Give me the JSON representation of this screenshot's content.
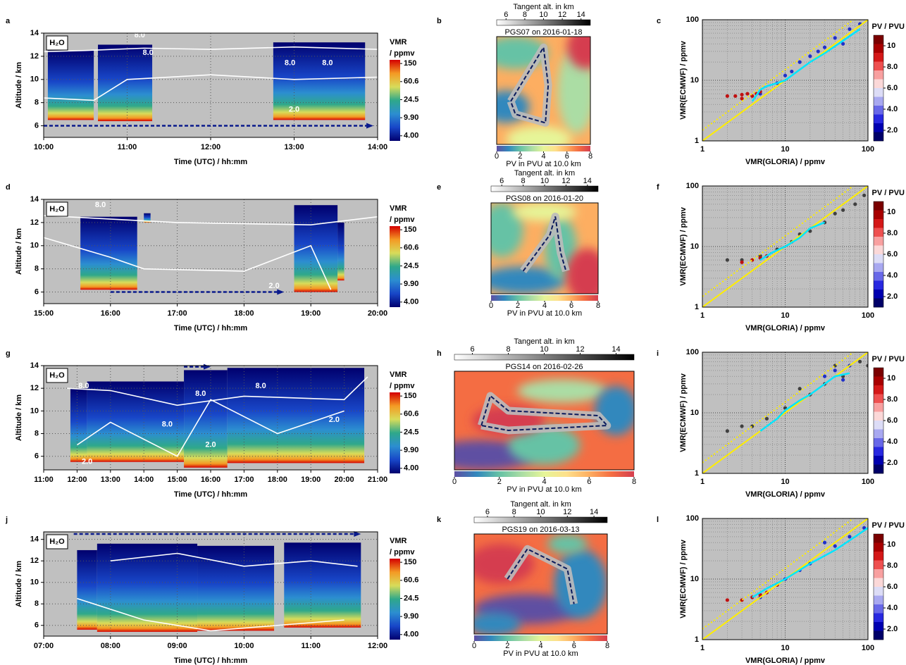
{
  "chart_data": [
    {
      "type": "curtain",
      "panel_label": "a",
      "species": "H₂O",
      "xlabel": "Time (UTC) / hh:mm",
      "ylabel": "Altitude / km",
      "xlim": [
        10,
        14
      ],
      "xticks": [
        {
          "value": 10,
          "label": "10:00"
        },
        {
          "value": 11,
          "label": "11:00"
        },
        {
          "value": 12,
          "label": "12:00"
        },
        {
          "value": 13,
          "label": "13:00"
        },
        {
          "value": 14,
          "label": "14:00"
        }
      ],
      "ylim": [
        5,
        14
      ],
      "yticks": [
        6,
        8,
        10,
        12,
        14
      ],
      "grid": true,
      "colorbar_title": [
        "VMR",
        "/ ppmv"
      ],
      "clim": [
        3.1,
        180
      ],
      "log_colorbar": true,
      "colorbar_ticks": [
        150,
        60.6,
        24.5,
        {
          "value": 9.9,
          "label": "9.90"
        },
        {
          "value": 4,
          "label": "4.00"
        }
      ],
      "colormap": [
        "#00006e",
        "#1846c8",
        "#2c8ed0",
        "#2fa88a",
        "#d8dc5a",
        "#f49a24",
        "#d40000"
      ],
      "contour_labels": [
        "8.0",
        "8.0",
        "8.0",
        "8.0",
        "2.0"
      ]
    },
    {
      "type": "map",
      "panel_label": "b",
      "title": "PGS07 on 2016-01-18",
      "tangent_title": "Tangent alt. in km",
      "tangent_lim": [
        5,
        15
      ],
      "tangent_ticks": [
        6,
        8,
        10,
        12,
        14
      ],
      "pv_label": "PV in PVU at 10.0 km",
      "pv_lim": [
        0,
        8
      ],
      "pv_ticks": [
        0,
        2,
        4,
        6,
        8
      ],
      "pv_colormap": [
        "#5e4fa2",
        "#3288bd",
        "#66c2a5",
        "#abdda4",
        "#e6f598",
        "#fee08b",
        "#fdae61",
        "#f46d43",
        "#d53e4f",
        "#9e0142"
      ]
    },
    {
      "type": "scatter",
      "panel_label": "c",
      "xlabel": "VMR(GLORIA) / ppmv",
      "ylabel": "VMR(ECMWF) / ppmv",
      "log": true,
      "xlim": [
        1,
        100
      ],
      "ylim": [
        1,
        100
      ],
      "xticks": [
        1,
        10,
        100
      ],
      "yticks": [
        1,
        10,
        100
      ],
      "colorbar_title": "PV / PVU",
      "clim": [
        1,
        11
      ],
      "colorbar_ticks": [
        {
          "value": 2,
          "label": "2.0"
        },
        {
          "value": 4,
          "label": "4.0"
        },
        {
          "value": 6,
          "label": "6.0"
        },
        {
          "value": 8,
          "label": "8.0"
        },
        10
      ],
      "colorbar_colors": [
        "#7a0000",
        "#a80000",
        "#d41818",
        "#ee5050",
        "#f8a0a0",
        "#fbd8d8",
        "#dcdcf6",
        "#a8a8f0",
        "#6868e8",
        "#2828e0",
        "#0000b0",
        "#000068"
      ],
      "series": [
        {
          "color": "#2030c8",
          "x": [
            5,
            8,
            12,
            15,
            20,
            30,
            40,
            60,
            80,
            25,
            10,
            50
          ],
          "y": [
            6,
            9,
            14,
            20,
            25,
            35,
            50,
            70,
            85,
            30,
            12,
            40
          ]
        },
        {
          "color": "#c01010",
          "x": [
            2,
            2.5,
            3,
            3.5,
            4,
            4.5,
            5,
            3
          ],
          "y": [
            5.5,
            5.5,
            5.8,
            6,
            5.5,
            6,
            6.5,
            5
          ]
        }
      ],
      "median": {
        "color": "#00e5ff",
        "x": [
          4,
          5,
          6,
          8,
          10,
          15,
          20,
          30,
          50,
          80
        ],
        "y": [
          4.5,
          7,
          8,
          9,
          10,
          15,
          20,
          28,
          45,
          70
        ]
      }
    },
    {
      "type": "curtain",
      "panel_label": "d",
      "species": "H₂O",
      "xlabel": "Time (UTC) / hh:mm",
      "ylabel": "Altitude / km",
      "xlim": [
        15,
        20
      ],
      "xticks": [
        {
          "value": 15,
          "label": "15:00"
        },
        {
          "value": 16,
          "label": "16:00"
        },
        {
          "value": 17,
          "label": "17:00"
        },
        {
          "value": 18,
          "label": "18:00"
        },
        {
          "value": 19,
          "label": "19:00"
        },
        {
          "value": 20,
          "label": "20:00"
        }
      ],
      "ylim": [
        5,
        14
      ],
      "yticks": [
        6,
        8,
        10,
        12,
        14
      ],
      "grid": true,
      "colorbar_title": [
        "VMR",
        "/ ppmv"
      ],
      "clim": [
        3.1,
        180
      ],
      "log_colorbar": true,
      "colorbar_ticks": [
        150,
        60.6,
        24.5,
        {
          "value": 9.9,
          "label": "9.90"
        },
        {
          "value": 4,
          "label": "4.00"
        }
      ],
      "colormap": [
        "#00006e",
        "#1846c8",
        "#2c8ed0",
        "#2fa88a",
        "#d8dc5a",
        "#f49a24",
        "#d40000"
      ],
      "contour_labels": [
        "8.0",
        "2.0"
      ]
    },
    {
      "type": "map",
      "panel_label": "e",
      "title": "PGS08 on 2016-01-20",
      "tangent_title": "Tangent alt. in km",
      "tangent_lim": [
        5,
        15
      ],
      "tangent_ticks": [
        6,
        8,
        10,
        12,
        14
      ],
      "pv_label": "PV in PVU at 10.0 km",
      "pv_lim": [
        0,
        8
      ],
      "pv_ticks": [
        0,
        2,
        4,
        6,
        8
      ],
      "pv_colormap": [
        "#5e4fa2",
        "#3288bd",
        "#66c2a5",
        "#abdda4",
        "#e6f598",
        "#fee08b",
        "#fdae61",
        "#f46d43",
        "#d53e4f",
        "#9e0142"
      ]
    },
    {
      "type": "scatter",
      "panel_label": "f",
      "xlabel": "VMR(GLORIA) / ppmv",
      "ylabel": "VMR(ECMWF) / ppmv",
      "log": true,
      "xlim": [
        1,
        100
      ],
      "ylim": [
        1,
        100
      ],
      "xticks": [
        1,
        10,
        100
      ],
      "yticks": [
        1,
        10,
        100
      ],
      "colorbar_title": "PV / PVU",
      "clim": [
        1,
        11
      ],
      "colorbar_ticks": [
        {
          "value": 2,
          "label": "2.0"
        },
        {
          "value": 4,
          "label": "4.0"
        },
        {
          "value": 6,
          "label": "6.0"
        },
        {
          "value": 8,
          "label": "8.0"
        },
        10
      ],
      "colorbar_colors": [
        "#7a0000",
        "#a80000",
        "#d41818",
        "#ee5050",
        "#f8a0a0",
        "#fbd8d8",
        "#dcdcf6",
        "#a8a8f0",
        "#6868e8",
        "#2828e0",
        "#0000b0",
        "#000068"
      ],
      "series": [
        {
          "color": "#404040",
          "x": [
            2,
            3,
            5,
            8,
            12,
            20,
            30,
            50,
            70,
            90,
            15,
            40
          ],
          "y": [
            6,
            6,
            7,
            9,
            12,
            18,
            25,
            40,
            50,
            70,
            16,
            35
          ]
        },
        {
          "color": "#c01010",
          "x": [
            3,
            4,
            5,
            6
          ],
          "y": [
            5.5,
            6,
            6.5,
            7
          ]
        }
      ],
      "median": {
        "color": "#00e5ff",
        "x": [
          5,
          7,
          10,
          15,
          20,
          30
        ],
        "y": [
          6,
          8,
          10,
          14,
          20,
          25
        ]
      }
    },
    {
      "type": "curtain",
      "panel_label": "g",
      "species": "H₂O",
      "xlabel": "Time (UTC) / hh:mm",
      "ylabel": "Altitude / km",
      "xlim": [
        11,
        21
      ],
      "xticks": [
        {
          "value": 11,
          "label": "11:00"
        },
        {
          "value": 12,
          "label": "12:00"
        },
        {
          "value": 13,
          "label": "13:00"
        },
        {
          "value": 14,
          "label": "14:00"
        },
        {
          "value": 15,
          "label": "15:00"
        },
        {
          "value": 16,
          "label": "16:00"
        },
        {
          "value": 17,
          "label": "17:00"
        },
        {
          "value": 18,
          "label": "18:00"
        },
        {
          "value": 19,
          "label": "19:00"
        },
        {
          "value": 20,
          "label": "20:00"
        },
        {
          "value": 21,
          "label": "21:00"
        }
      ],
      "ylim": [
        4.8,
        14
      ],
      "yticks": [
        6,
        8,
        10,
        12,
        14
      ],
      "grid": true,
      "colorbar_title": [
        "VMR",
        "/ ppmv"
      ],
      "clim": [
        3.1,
        180
      ],
      "log_colorbar": true,
      "colorbar_ticks": [
        150,
        60.6,
        24.5,
        {
          "value": 9.9,
          "label": "9.90"
        },
        {
          "value": 4,
          "label": "4.00"
        }
      ],
      "colormap": [
        "#00006e",
        "#1846c8",
        "#2c8ed0",
        "#2fa88a",
        "#d8dc5a",
        "#f49a24",
        "#d40000"
      ],
      "contour_labels": [
        "8.0",
        "8.0",
        "8.0",
        "8.0",
        "2.0",
        "2.0",
        "2.0"
      ]
    },
    {
      "type": "map",
      "panel_label": "h",
      "title": "PGS14 on 2016-02-26",
      "tangent_title": "Tangent alt. in km",
      "tangent_lim": [
        5,
        15
      ],
      "tangent_ticks": [
        6,
        8,
        10,
        12,
        14
      ],
      "pv_label": "PV in PVU at 10.0 km",
      "pv_lim": [
        0,
        8
      ],
      "pv_ticks": [
        0,
        2,
        4,
        6,
        8
      ],
      "pv_colormap": [
        "#5e4fa2",
        "#3288bd",
        "#66c2a5",
        "#abdda4",
        "#e6f598",
        "#fee08b",
        "#fdae61",
        "#f46d43",
        "#d53e4f",
        "#9e0142"
      ]
    },
    {
      "type": "scatter",
      "panel_label": "i",
      "xlabel": "VMR(GLORIA) / ppmv",
      "ylabel": "VMR(ECMWF) / ppmv",
      "log": true,
      "xlim": [
        1,
        100
      ],
      "ylim": [
        1,
        100
      ],
      "xticks": [
        1,
        10,
        100
      ],
      "yticks": [
        1,
        10,
        100
      ],
      "colorbar_title": "PV / PVU",
      "clim": [
        1,
        11
      ],
      "colorbar_ticks": [
        {
          "value": 2,
          "label": "2.0"
        },
        {
          "value": 4,
          "label": "4.0"
        },
        {
          "value": 6,
          "label": "6.0"
        },
        {
          "value": 8,
          "label": "8.0"
        },
        10
      ],
      "colorbar_colors": [
        "#7a0000",
        "#a80000",
        "#d41818",
        "#ee5050",
        "#f8a0a0",
        "#fbd8d8",
        "#dcdcf6",
        "#a8a8f0",
        "#6868e8",
        "#2828e0",
        "#0000b0",
        "#000068"
      ],
      "series": [
        {
          "color": "#404040",
          "x": [
            2,
            3,
            4,
            6,
            10,
            20,
            30,
            50,
            80,
            100,
            40,
            15
          ],
          "y": [
            5,
            6,
            6,
            8,
            12,
            20,
            30,
            40,
            70,
            60,
            60,
            25
          ]
        },
        {
          "color": "#2030c8",
          "x": [
            30,
            40,
            50,
            60
          ],
          "y": [
            40,
            50,
            35,
            60
          ]
        }
      ],
      "median": {
        "color": "#00e5ff",
        "x": [
          5,
          8,
          10,
          15,
          20,
          30,
          40,
          60
        ],
        "y": [
          5,
          8,
          11,
          16,
          20,
          30,
          40,
          45
        ]
      }
    },
    {
      "type": "curtain",
      "panel_label": "j",
      "species": "H₂O",
      "xlabel": "Time (UTC) / hh:mm",
      "ylabel": "Altitude / km",
      "xlim": [
        7,
        12
      ],
      "xticks": [
        {
          "value": 7,
          "label": "07:00"
        },
        {
          "value": 8,
          "label": "08:00"
        },
        {
          "value": 9,
          "label": "09:00"
        },
        {
          "value": 10,
          "label": "10:00"
        },
        {
          "value": 11,
          "label": "11:00"
        },
        {
          "value": 12,
          "label": "12:00"
        }
      ],
      "ylim": [
        5,
        14.7
      ],
      "yticks": [
        6,
        8,
        10,
        12,
        14
      ],
      "grid": true,
      "colorbar_title": [
        "VMR",
        "/ ppmv"
      ],
      "clim": [
        3.1,
        180
      ],
      "log_colorbar": true,
      "colorbar_ticks": [
        150,
        60.6,
        24.5,
        {
          "value": 9.9,
          "label": "9.90"
        },
        {
          "value": 4,
          "label": "4.00"
        }
      ],
      "colormap": [
        "#00006e",
        "#1846c8",
        "#2c8ed0",
        "#2fa88a",
        "#d8dc5a",
        "#f49a24",
        "#d40000"
      ]
    },
    {
      "type": "map",
      "panel_label": "k",
      "title": "PGS19 on 2016-03-13",
      "tangent_title": "Tangent alt. in km",
      "tangent_lim": [
        5,
        15
      ],
      "tangent_ticks": [
        6,
        8,
        10,
        12,
        14
      ],
      "pv_label": "PV in PVU at 10.0 km",
      "pv_lim": [
        0,
        8
      ],
      "pv_ticks": [
        0,
        2,
        4,
        6,
        8
      ],
      "pv_colormap": [
        "#5e4fa2",
        "#3288bd",
        "#66c2a5",
        "#abdda4",
        "#e6f598",
        "#fee08b",
        "#fdae61",
        "#f46d43",
        "#d53e4f",
        "#9e0142"
      ]
    },
    {
      "type": "scatter",
      "panel_label": "l",
      "xlabel": "VMR(GLORIA) / ppmv",
      "ylabel": "VMR(ECMWF) / ppmv",
      "log": true,
      "xlim": [
        1,
        100
      ],
      "ylim": [
        1,
        100
      ],
      "xticks": [
        1,
        10,
        100
      ],
      "yticks": [
        1,
        10,
        100
      ],
      "colorbar_title": "PV / PVU",
      "clim": [
        1,
        11
      ],
      "colorbar_ticks": [
        {
          "value": 2,
          "label": "2.0"
        },
        {
          "value": 4,
          "label": "4.0"
        },
        {
          "value": 6,
          "label": "6.0"
        },
        {
          "value": 8,
          "label": "8.0"
        },
        10
      ],
      "colorbar_colors": [
        "#7a0000",
        "#a80000",
        "#d41818",
        "#ee5050",
        "#f8a0a0",
        "#fbd8d8",
        "#dcdcf6",
        "#a8a8f0",
        "#6868e8",
        "#2828e0",
        "#0000b0",
        "#000068"
      ],
      "series": [
        {
          "color": "#2030c8",
          "x": [
            5,
            8,
            10,
            20,
            40,
            60,
            90,
            30,
            15
          ],
          "y": [
            5,
            8,
            10,
            18,
            35,
            50,
            70,
            40,
            14
          ]
        },
        {
          "color": "#c01010",
          "x": [
            2,
            3,
            4,
            5,
            6,
            8
          ],
          "y": [
            4.5,
            4.5,
            5,
            5.5,
            6,
            8
          ]
        }
      ],
      "median": {
        "color": "#00e5ff",
        "x": [
          4,
          6,
          10,
          20,
          40,
          70,
          100
        ],
        "y": [
          5,
          7,
          10,
          18,
          30,
          50,
          70
        ]
      }
    }
  ]
}
